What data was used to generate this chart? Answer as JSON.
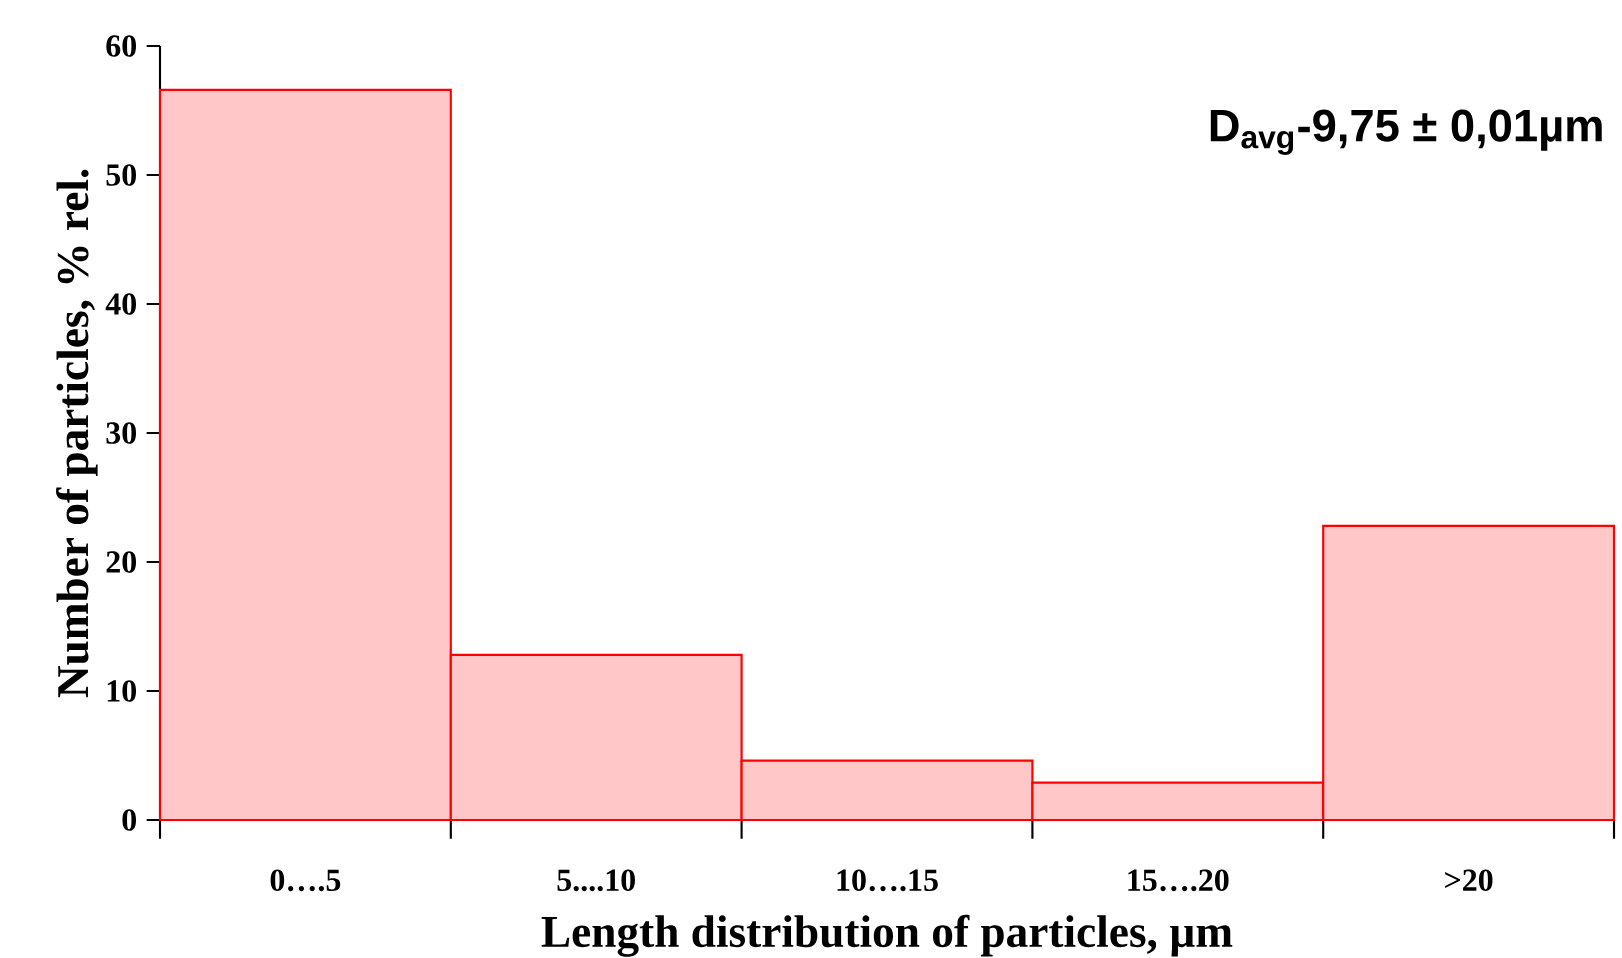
{
  "chart_data": {
    "type": "bar",
    "categories": [
      "0….5",
      "5....10",
      "10….15",
      "15….20",
      ">20"
    ],
    "values": [
      56.6,
      12.8,
      4.6,
      2.9,
      22.8
    ],
    "color": "#ff0000",
    "xlabel": "Length distribution  of particles, µm",
    "ylabel": "Number of particles,  % rel.",
    "ylim": [
      0,
      60
    ],
    "yticks": [
      0,
      10,
      20,
      30,
      40,
      50,
      60
    ],
    "annotations": [
      "D$_{avg}$-9,75 ± 0,01µm"
    ]
  }
}
